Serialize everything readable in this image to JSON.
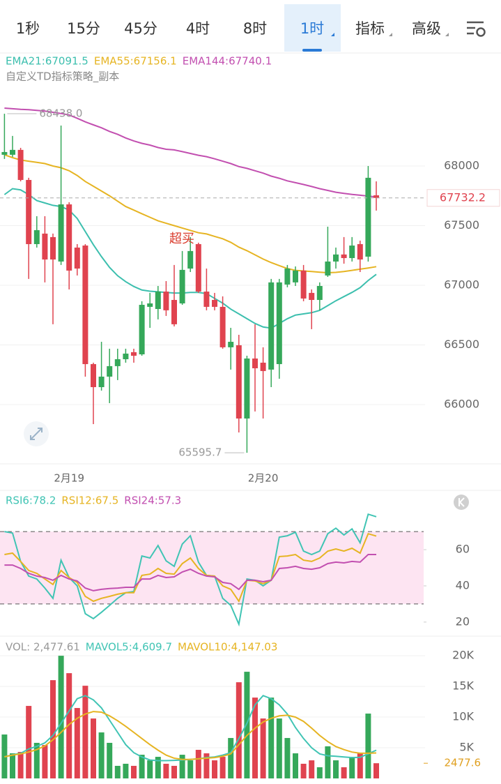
{
  "tabs": [
    "1秒",
    "15分",
    "45分",
    "4时",
    "8时",
    "1时",
    "指标",
    "高级"
  ],
  "selected_tab": "1时",
  "chart_data": [
    {
      "type": "candlestick",
      "subtitle": "自定义TD指标策略_副本",
      "annotation": "超买",
      "high_label": "68438.0",
      "low_label": "65595.7",
      "last_price": {
        "value": 67732.2,
        "label": "67732.2"
      },
      "up_color": "#35a85a",
      "down_color": "#e0434f",
      "categories": [
        null,
        null,
        null,
        null,
        null,
        null,
        null,
        null,
        "2月19",
        null,
        null,
        null,
        null,
        null,
        null,
        null,
        null,
        null,
        null,
        null,
        null,
        null,
        null,
        null,
        null,
        null,
        null,
        null,
        null,
        null,
        null,
        null,
        "2月20",
        null,
        null,
        null,
        null,
        null,
        null,
        null,
        null,
        null,
        null,
        null,
        null,
        null,
        null
      ],
      "open": [
        68094,
        68094,
        68135,
        67883,
        67345,
        67433,
        67404,
        67199,
        67678,
        67316,
        67333,
        66339,
        66146,
        66234,
        66322,
        66380,
        66439,
        66421,
        66819,
        66801,
        66947,
        66877,
        66848,
        67140,
        67345,
        66947,
        66877,
        66819,
        66480,
        66497,
        65883,
        66386,
        66351,
        66293,
        66339,
        67006,
        67024,
        67123,
        66936,
        66877,
        67082,
        67199,
        67258,
        67228,
        67345,
        67240,
        67754
      ],
      "high": [
        68438,
        68252,
        68152,
        67901,
        67579,
        67579,
        67433,
        68339,
        67696,
        67345,
        67345,
        66351,
        66526,
        66468,
        66468,
        66468,
        66468,
        66866,
        66936,
        66994,
        67035,
        67170,
        67287,
        67404,
        67357,
        67140,
        66936,
        66907,
        66643,
        66585,
        66409,
        66673,
        66480,
        67053,
        67053,
        67170,
        67158,
        67170,
        66965,
        67024,
        67491,
        67316,
        67404,
        67404,
        67374,
        68000,
        67871
      ],
      "low": [
        68059,
        68076,
        67871,
        67053,
        67316,
        67024,
        66673,
        67170,
        66965,
        67082,
        66234,
        65836,
        66117,
        66012,
        66205,
        66351,
        66351,
        66409,
        66643,
        66714,
        66743,
        66655,
        66836,
        67111,
        66936,
        66790,
        66790,
        66468,
        66293,
        65766,
        65595.7,
        65942,
        65883,
        66146,
        66216,
        66983,
        66994,
        66866,
        66632,
        66790,
        67070,
        67140,
        67181,
        67199,
        67111,
        67199,
        67626
      ],
      "close": [
        68117,
        68135,
        67883,
        67345,
        67462,
        67216,
        67216,
        67678,
        67123,
        67140,
        66339,
        66146,
        66234,
        66322,
        66380,
        66427,
        66409,
        66836,
        66848,
        66947,
        66790,
        66673,
        67129,
        67287,
        66947,
        66819,
        66819,
        66480,
        66526,
        65883,
        66386,
        66304,
        66281,
        67024,
        67024,
        67140,
        67123,
        66889,
        66877,
        66994,
        67199,
        67258,
        67228,
        67333,
        67216,
        67901,
        67732.2
      ],
      "series": [
        {
          "name": "EMA21:67091.5",
          "color": "#3cbfae",
          "values": [
            67760,
            67810,
            67800,
            67760,
            67710,
            67690,
            67670,
            67660,
            67630,
            67560,
            67450,
            67340,
            67240,
            67150,
            67080,
            67030,
            66990,
            66960,
            66950,
            66945,
            66940,
            66935,
            66935,
            66940,
            66940,
            66930,
            66890,
            66850,
            66800,
            66760,
            66720,
            66680,
            66650,
            66640,
            66680,
            66720,
            66750,
            66760,
            66770,
            66790,
            66830,
            66870,
            66905,
            66940,
            66980,
            67040,
            67091.5
          ]
        },
        {
          "name": "EMA55:67156.1",
          "color": "#e6b422",
          "values": [
            68094,
            68070,
            68050,
            68040,
            68030,
            68020,
            68000,
            67985,
            67960,
            67920,
            67870,
            67830,
            67790,
            67750,
            67705,
            67660,
            67630,
            67600,
            67570,
            67540,
            67520,
            67500,
            67480,
            67460,
            67440,
            67430,
            67410,
            67390,
            67360,
            67320,
            67290,
            67255,
            67220,
            67190,
            67165,
            67140,
            67125,
            67120,
            67115,
            67110,
            67105,
            67108,
            67115,
            67125,
            67135,
            67145,
            67156.1
          ]
        },
        {
          "name": "EMA144:67740.1",
          "color": "#c24fb0",
          "values": [
            68485,
            68480,
            68475,
            68472,
            68466,
            68460,
            68450,
            68440,
            68428,
            68400,
            68370,
            68345,
            68320,
            68290,
            68265,
            68235,
            68210,
            68190,
            68175,
            68155,
            68140,
            68135,
            68120,
            68105,
            68090,
            68078,
            68060,
            68040,
            68020,
            67995,
            67980,
            67960,
            67940,
            67915,
            67897,
            67875,
            67860,
            67845,
            67828,
            67810,
            67795,
            67780,
            67770,
            67762,
            67755,
            67748,
            67740.1
          ]
        }
      ],
      "ylim": [
        65500,
        68950
      ],
      "yticks": [
        66000,
        66500,
        67000,
        67500,
        68000
      ],
      "grid": true
    },
    {
      "type": "line",
      "bands": [
        30,
        70
      ],
      "band_color": "#fde4f2",
      "series": [
        {
          "name": "RSI6:78.2",
          "color": "#40c4b4",
          "values": [
            70.0,
            69.2,
            53.5,
            45.4,
            43.8,
            38.8,
            33.1,
            54.2,
            44.6,
            40.0,
            24.6,
            21.9,
            25.4,
            29.2,
            33.1,
            36.2,
            36.9,
            56.5,
            55.4,
            62.3,
            53.8,
            50.8,
            63.1,
            67.7,
            53.1,
            45.8,
            45.4,
            33.1,
            29.2,
            18.8,
            43.8,
            43.1,
            40.0,
            43.1,
            66.9,
            67.7,
            69.6,
            59.2,
            57.3,
            59.2,
            68.8,
            71.9,
            68.1,
            71.5,
            63.8,
            79.6,
            78.2
          ]
        },
        {
          "name": "RSI12:67.5",
          "color": "#e6b422",
          "values": [
            57.3,
            58.1,
            53.5,
            48.5,
            46.9,
            43.8,
            40.8,
            48.5,
            44.6,
            41.9,
            34.2,
            31.5,
            33.1,
            34.2,
            35.4,
            36.2,
            36.2,
            45.8,
            46.5,
            49.6,
            46.9,
            46.5,
            52.3,
            55.4,
            49.6,
            45.8,
            45.4,
            40.0,
            38.1,
            31.5,
            43.1,
            42.7,
            41.2,
            43.1,
            56.2,
            56.5,
            57.3,
            54.2,
            53.5,
            55.4,
            59.2,
            60.4,
            59.2,
            60.8,
            58.1,
            68.8,
            67.5
          ]
        },
        {
          "name": "RSI24:57.3",
          "color": "#c24fb0",
          "values": [
            51.5,
            51.5,
            49.6,
            46.9,
            45.4,
            44.6,
            43.1,
            45.8,
            43.8,
            42.7,
            38.8,
            37.3,
            38.1,
            38.5,
            38.8,
            39.2,
            39.2,
            43.8,
            43.8,
            45.8,
            44.6,
            45.0,
            47.7,
            49.2,
            46.9,
            45.4,
            45.0,
            41.9,
            41.2,
            38.1,
            43.1,
            43.1,
            42.3,
            43.1,
            49.6,
            50.0,
            50.8,
            49.6,
            49.2,
            50.0,
            52.3,
            53.1,
            52.7,
            53.5,
            53.1,
            57.3,
            57.3
          ]
        }
      ],
      "ylim": [
        13,
        92
      ],
      "yticks": [
        20,
        40,
        60
      ]
    },
    {
      "type": "bar",
      "last_value": {
        "value": 2477.61,
        "label": "2477.6"
      },
      "series": [
        {
          "name": "VOL: 2,477.61",
          "color": "#999999",
          "values": [
            7160,
            4090,
            4320,
            11820,
            5800,
            5450,
            16020,
            20000,
            17160,
            11480,
            15110,
            9770,
            7500,
            5800,
            2050,
            2390,
            2050,
            3860,
            2950,
            3520,
            2390,
            2050,
            3860,
            2950,
            4660,
            4090,
            2950,
            3520,
            6590,
            15680,
            17390,
            13180,
            9770,
            13180,
            9770,
            6590,
            4090,
            2390,
            2950,
            1820,
            5230,
            2950,
            1820,
            3520,
            4090,
            10570,
            2477.61
          ]
        },
        {
          "name": "MAVOL5:4,609.7",
          "color": "#40c4b4",
          "type": "line",
          "values": [
            3520,
            3860,
            4090,
            4800,
            5230,
            5800,
            7000,
            9000,
            11000,
            13000,
            13500,
            12800,
            11500,
            9500,
            7500,
            5500,
            4200,
            3500,
            3000,
            2900,
            2900,
            2950,
            3000,
            3100,
            3200,
            3400,
            3500,
            3800,
            4200,
            6500,
            9000,
            12000,
            13500,
            13000,
            12000,
            10500,
            8300,
            6500,
            5000,
            4000,
            3700,
            3600,
            3500,
            3400,
            3450,
            4000,
            4609.7
          ]
        },
        {
          "name": "MAVOL10:4,147.03",
          "color": "#e6b422",
          "type": "line",
          "values": [
            3520,
            3800,
            4000,
            4300,
            4700,
            5300,
            6300,
            7500,
            8800,
            9800,
            10500,
            10900,
            10800,
            10200,
            9400,
            8500,
            7500,
            6500,
            5500,
            4600,
            3800,
            3300,
            3100,
            3100,
            3200,
            3300,
            3400,
            3600,
            4000,
            5500,
            7000,
            8200,
            9200,
            9800,
            10200,
            10300,
            10000,
            9300,
            8200,
            7000,
            6000,
            5200,
            4700,
            4300,
            4100,
            4100,
            4147.03
          ]
        }
      ],
      "ylim": [
        0,
        22800
      ],
      "yticks": [
        {
          "value": 5000,
          "label": "5K"
        },
        {
          "value": 10000,
          "label": "10K"
        },
        {
          "value": 15000,
          "label": "15K"
        },
        {
          "value": 20000,
          "label": "20K"
        }
      ]
    }
  ]
}
